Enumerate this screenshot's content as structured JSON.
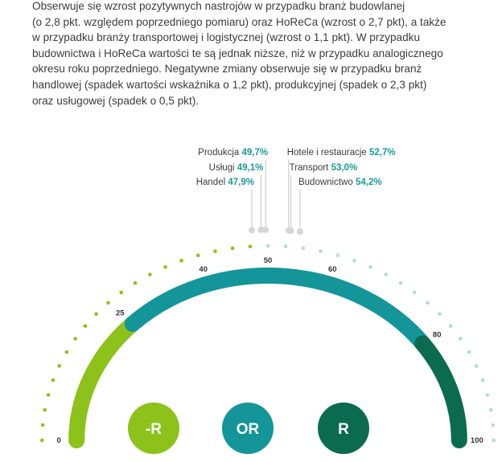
{
  "intro": [
    "Obserwuje się wzrost pozytywnych nastrojów w przypadku branż budowlanej",
    "(o 2,8 pkt. względem poprzedniego pomiaru) oraz HoReCa (wzrost o 2,7 pkt), a także",
    "w przypadku branży transportowej i logistycznej (wzrost o 1,1 pkt). W przypadku",
    "budownictwa i HoReCa wartości te są jednak niższe, niż w przypadku analogicznego",
    "okresu roku poprzedniego. Negatywne zmiany obserwuje się w przypadku branż",
    "handlowej (spadek wartości wskaźnika o 1,2 pkt), produkcyjnej (spadek o 2,3 pkt)",
    "oraz usługowej (spadek o 0,5 pkt)."
  ],
  "chart_data": {
    "type": "gauge",
    "scale": [
      0,
      100
    ],
    "tick_labels": [
      "0",
      "25",
      "40",
      "50",
      "60",
      "80",
      "100"
    ],
    "zones": [
      {
        "badge": "-R",
        "from": 0,
        "to": 25,
        "color": "#8cc219"
      },
      {
        "badge": "OR",
        "from": 25,
        "to": 80,
        "color": "#13959a"
      },
      {
        "badge": "R",
        "from": 80,
        "to": 100,
        "color": "#0b6b4f"
      }
    ],
    "sectors": [
      {
        "name": "Produkcja",
        "display": "49,7%",
        "value": 49.7
      },
      {
        "name": "Usługi",
        "display": "49,1%",
        "value": 49.1
      },
      {
        "name": "Handel",
        "display": "47,9%",
        "value": 47.9
      },
      {
        "name": "Hotele i restauracje",
        "display": "52,7%",
        "value": 52.7
      },
      {
        "name": "Transport",
        "display": "53,0%",
        "value": 53.0
      },
      {
        "name": "Budownictwo",
        "display": "54,2%",
        "value": 54.2
      }
    ]
  }
}
